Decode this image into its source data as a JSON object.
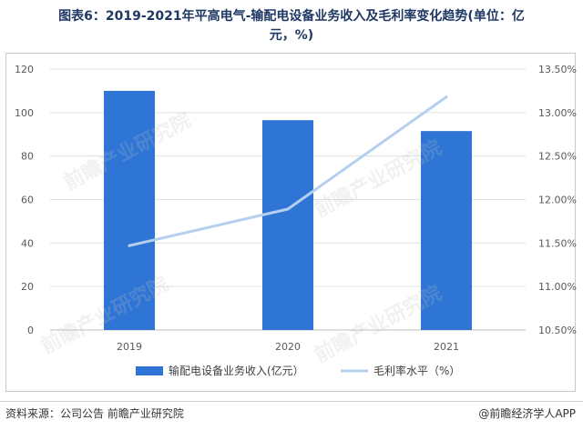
{
  "title_line1": "图表6：2019-2021年平高电气-输配电设备业务收入及毛利率变化趋势(单位：亿",
  "title_line2": "元，%)",
  "source": "资料来源：公司公告 前瞻产业研究院",
  "brand": "@前瞻经济学人APP",
  "watermark": "前瞻产业研究院",
  "colors": {
    "bar": "#2e75d6",
    "line": "#b4d0ee",
    "grid": "#e0e0e0",
    "axis_text": "#595959"
  },
  "chart_data": {
    "type": "bar",
    "categories": [
      "2019",
      "2020",
      "2021"
    ],
    "series": [
      {
        "name": "输配电设备业务收入(亿元）",
        "type": "bar",
        "axis": "left",
        "values": [
          110,
          96.5,
          91.5
        ]
      },
      {
        "name": "毛利率水平（%）",
        "type": "line",
        "axis": "right",
        "values": [
          11.47,
          11.89,
          13.18
        ]
      }
    ],
    "y_left": {
      "min": 0,
      "max": 120,
      "ticks": [
        "0",
        "20",
        "40",
        "60",
        "80",
        "100",
        "120"
      ]
    },
    "y_right": {
      "min": 10.5,
      "max": 13.5,
      "ticks": [
        "10.50%",
        "11.00%",
        "11.50%",
        "12.00%",
        "12.50%",
        "13.00%",
        "13.50%"
      ]
    },
    "grid": true,
    "legend": "bottom"
  }
}
